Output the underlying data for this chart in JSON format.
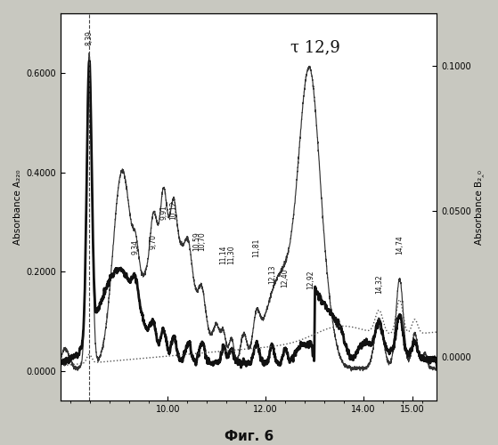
{
  "title": "τ 12,9",
  "xlabel_bottom": "Фиг. 6",
  "ylabel_left": "Absorbance A₂₂₀",
  "ylabel_right": "Absorbance B₂‸₀",
  "ylim_left": [
    -0.06,
    0.72
  ],
  "ylim_right": [
    -0.015,
    0.118
  ],
  "xlim": [
    7.8,
    15.5
  ],
  "yticks_left": [
    0.0,
    0.2,
    0.4,
    0.6
  ],
  "yticks_right": [
    0.0,
    0.05,
    0.1
  ],
  "xticks": [
    10.0,
    12.0,
    14.0,
    15.0
  ],
  "bg_plot": "#ffffff",
  "bg_fig": "#c8c8c0",
  "line_thin_color": "#333333",
  "line_thick_color": "#111111",
  "line_dot_color": "#555555"
}
